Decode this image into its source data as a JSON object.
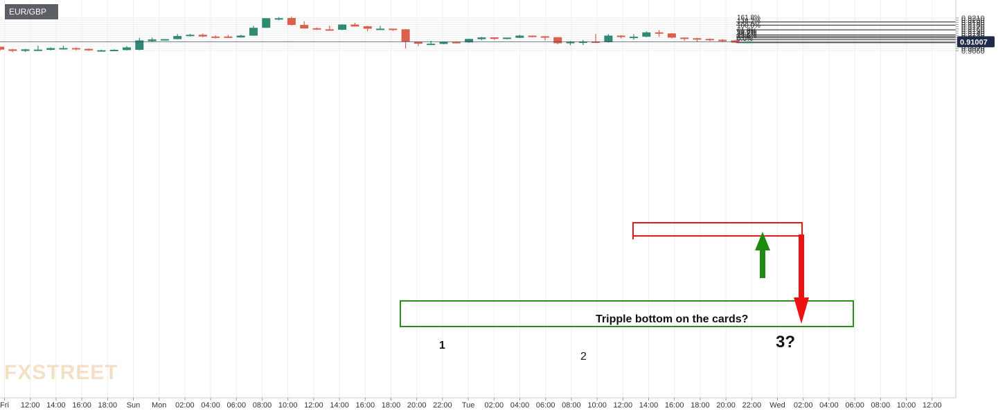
{
  "symbol": "EUR/GBP",
  "watermark": "FXSTREET",
  "colors": {
    "up": "#2f8a73",
    "down": "#d8604c",
    "fib": "#222222",
    "grid": "#eeeeee",
    "price_line": "#34405a",
    "green_box": "#2c8c1c",
    "red_box": "#e81818",
    "green_arrow": "#1e8a12",
    "red_arrow": "#ee1111"
  },
  "chart_data": {
    "type": "candlestick",
    "ylim": [
      0.9052,
      0.9217
    ],
    "y_ticks": [
      "0.9060",
      "0.9070",
      "0.9080",
      "0.9090",
      "0.9100",
      "0.9110",
      "0.9120",
      "0.9130",
      "0.9140",
      "0.9150",
      "0.9160",
      "0.9170",
      "0.9180",
      "0.9190",
      "0.9200",
      "0.9210"
    ],
    "x_ticks": [
      "Fri",
      "12:00",
      "14:00",
      "16:00",
      "18:00",
      "Sun",
      "Mon",
      "02:00",
      "04:00",
      "06:00",
      "08:00",
      "10:00",
      "12:00",
      "14:00",
      "16:00",
      "18:00",
      "20:00",
      "22:00",
      "Tue",
      "02:00",
      "04:00",
      "06:00",
      "08:00",
      "10:00",
      "12:00",
      "14:00",
      "16:00",
      "18:00",
      "20:00",
      "22:00",
      "Wed",
      "02:00",
      "04:00",
      "06:00",
      "08:00",
      "10:00",
      "12:00"
    ],
    "last_price": "0.91007",
    "candles": [
      [
        0.9078,
        0.9078,
        0.906,
        0.9065
      ],
      [
        0.9066,
        0.9068,
        0.9053,
        0.9059
      ],
      [
        0.9059,
        0.9068,
        0.9054,
        0.9066
      ],
      [
        0.9065,
        0.9083,
        0.9062,
        0.9065
      ],
      [
        0.9064,
        0.9075,
        0.9061,
        0.9072
      ],
      [
        0.9072,
        0.9083,
        0.9065,
        0.9072
      ],
      [
        0.9072,
        0.9075,
        0.9062,
        0.9068
      ],
      [
        0.9068,
        0.907,
        0.9059,
        0.9062
      ],
      [
        0.906,
        0.9065,
        0.9059,
        0.9062
      ],
      [
        0.906,
        0.9066,
        0.9057,
        0.9064
      ],
      [
        0.9063,
        0.9081,
        0.9061,
        0.9075
      ],
      [
        0.9064,
        0.9119,
        0.9062,
        0.9107
      ],
      [
        0.9104,
        0.912,
        0.91,
        0.9112
      ],
      [
        0.9113,
        0.9113,
        0.9106,
        0.9113
      ],
      [
        0.9113,
        0.9136,
        0.9112,
        0.9127
      ],
      [
        0.9127,
        0.9137,
        0.9125,
        0.9133
      ],
      [
        0.9133,
        0.9139,
        0.9122,
        0.9125
      ],
      [
        0.9125,
        0.913,
        0.9116,
        0.9123
      ],
      [
        0.9125,
        0.9133,
        0.9119,
        0.9122
      ],
      [
        0.9121,
        0.9133,
        0.912,
        0.9129
      ],
      [
        0.9129,
        0.9174,
        0.9128,
        0.9165
      ],
      [
        0.9165,
        0.9209,
        0.9165,
        0.9209
      ],
      [
        0.9207,
        0.9214,
        0.9199,
        0.9209
      ],
      [
        0.921,
        0.9217,
        0.9175,
        0.9178
      ],
      [
        0.9178,
        0.9195,
        0.9162,
        0.9162
      ],
      [
        0.9163,
        0.9167,
        0.9155,
        0.9158
      ],
      [
        0.9158,
        0.9175,
        0.9153,
        0.9155
      ],
      [
        0.9156,
        0.9182,
        0.9154,
        0.918
      ],
      [
        0.918,
        0.9188,
        0.917,
        0.9171
      ],
      [
        0.9172,
        0.9174,
        0.9149,
        0.9161
      ],
      [
        0.916,
        0.9174,
        0.9155,
        0.9161
      ],
      [
        0.9161,
        0.9161,
        0.9151,
        0.9159
      ],
      [
        0.9158,
        0.9159,
        0.907,
        0.9101
      ],
      [
        0.9101,
        0.9101,
        0.9081,
        0.9092
      ],
      [
        0.9092,
        0.9105,
        0.9087,
        0.9092
      ],
      [
        0.9091,
        0.9101,
        0.9089,
        0.91
      ],
      [
        0.91,
        0.9103,
        0.9094,
        0.9097
      ],
      [
        0.9098,
        0.9115,
        0.9096,
        0.9114
      ],
      [
        0.9113,
        0.9123,
        0.9108,
        0.9121
      ],
      [
        0.9121,
        0.9121,
        0.911,
        0.9114
      ],
      [
        0.9114,
        0.912,
        0.9112,
        0.912
      ],
      [
        0.9119,
        0.9133,
        0.9118,
        0.9129
      ],
      [
        0.9129,
        0.913,
        0.9122,
        0.9127
      ],
      [
        0.9126,
        0.9127,
        0.9107,
        0.9122
      ],
      [
        0.9122,
        0.9122,
        0.9089,
        0.9094
      ],
      [
        0.9094,
        0.9104,
        0.9085,
        0.9101
      ],
      [
        0.9099,
        0.9108,
        0.9086,
        0.9102
      ],
      [
        0.9102,
        0.9137,
        0.9095,
        0.9099
      ],
      [
        0.9099,
        0.9136,
        0.9097,
        0.9129
      ],
      [
        0.9129,
        0.9131,
        0.9116,
        0.9123
      ],
      [
        0.9124,
        0.9136,
        0.9111,
        0.9124
      ],
      [
        0.9124,
        0.9148,
        0.9122,
        0.9144
      ],
      [
        0.9144,
        0.9155,
        0.9123,
        0.914
      ],
      [
        0.9139,
        0.9141,
        0.9116,
        0.912
      ],
      [
        0.912,
        0.9122,
        0.9106,
        0.9117
      ],
      [
        0.9117,
        0.9119,
        0.9101,
        0.9114
      ],
      [
        0.9114,
        0.9116,
        0.9104,
        0.911
      ],
      [
        0.911,
        0.9114,
        0.91,
        0.9106
      ],
      [
        0.9107,
        0.9108,
        0.9096,
        0.9097
      ],
      [
        0.9098,
        0.9102,
        0.9096,
        0.9101
      ]
    ],
    "fib_levels": [
      {
        "label": "161.8%",
        "price": 0.91918
      },
      {
        "label": "138.2%",
        "price": 0.9177
      },
      {
        "label": "100.0%",
        "price": 0.91555
      },
      {
        "label": "61.8%",
        "price": 0.91324
      },
      {
        "label": "50.0%",
        "price": 0.91251
      },
      {
        "label": "38.2%",
        "price": 0.91189
      },
      {
        "label": "23.6%",
        "price": 0.91105
      },
      {
        "label": "0.0%",
        "price": 0.90964
      }
    ],
    "annotations": {
      "green_box_text": "Tripple bottom on the cards?",
      "label_1": "1",
      "label_2": "2",
      "label_3": "3?"
    }
  }
}
